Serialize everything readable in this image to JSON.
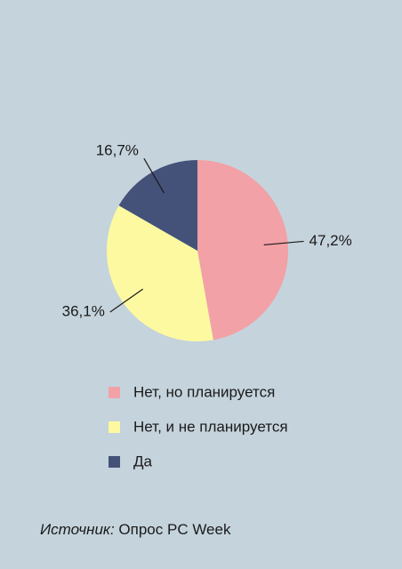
{
  "chart_data": {
    "type": "pie",
    "categories": [
      "Нет, но планируется",
      "Нет, и не планируется",
      "Да"
    ],
    "values": [
      47.2,
      36.1,
      16.7
    ],
    "value_labels": [
      "47,2%",
      "36,1%",
      "16,7%"
    ],
    "colors": [
      "#f2a1a6",
      "#fdf9a1",
      "#44527a"
    ],
    "source_label": "Источник:",
    "source_text": "Опрос PC Week"
  }
}
